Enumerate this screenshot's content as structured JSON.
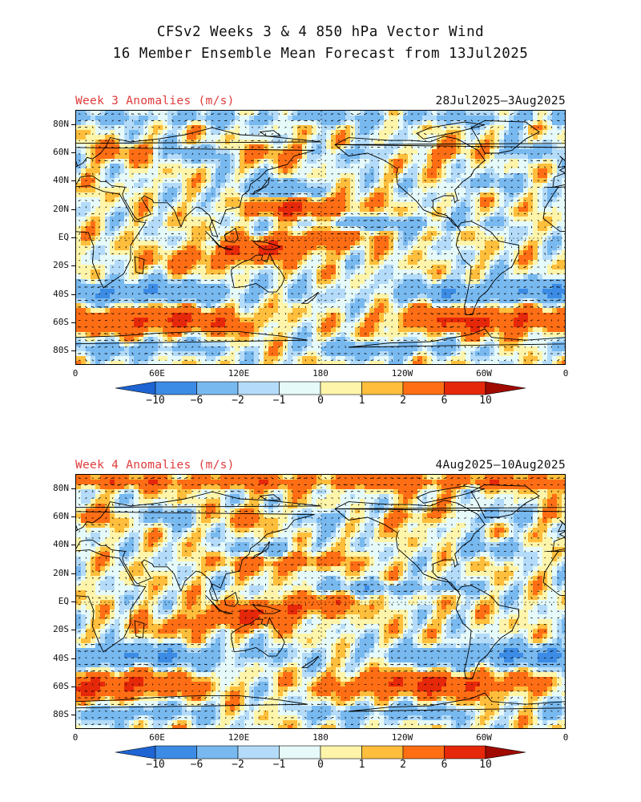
{
  "header": {
    "line1": "CFSv2 Weeks 3 & 4 850 hPa Vector Wind",
    "line2": "16 Member Ensemble Mean Forecast from 13Jul2025"
  },
  "panels": [
    {
      "label": "Week 3 Anomalies (m/s)",
      "dates": "28Jul2025–3Aug2025"
    },
    {
      "label": "Week 4 Anomalies (m/s)",
      "dates": "4Aug2025–10Aug2025"
    }
  ],
  "axes": {
    "lat_labels": [
      "80N",
      "60N",
      "40N",
      "20N",
      "EQ",
      "20S",
      "40S",
      "60S",
      "80S"
    ],
    "lon_labels": [
      "0",
      "60E",
      "120E",
      "180",
      "120W",
      "60W",
      "0"
    ]
  },
  "colorbar": {
    "ticks": [
      "−10",
      "−6",
      "−2",
      "−1",
      "0",
      "1",
      "2",
      "6",
      "10"
    ],
    "colors": [
      "#1e64d2",
      "#3c8ce6",
      "#78b9f0",
      "#b4dcfa",
      "#e6fafa",
      "#fff5aa",
      "#ffbe3c",
      "#ff6e14",
      "#e6280a",
      "#a00a00"
    ]
  },
  "map_style": {
    "continent_line": "#000000",
    "vector_color": "#000000",
    "gridline_color": "#000000"
  }
}
